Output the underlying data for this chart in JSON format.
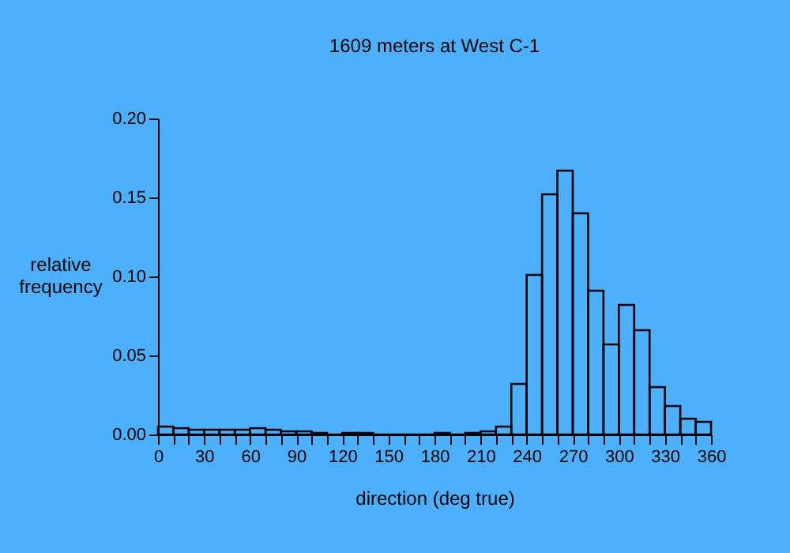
{
  "chart_data": {
    "type": "histogram",
    "title": "1609 meters at West C-1",
    "xlabel": "direction (deg true)",
    "ylabel": "relative frequency",
    "bins": [
      0,
      10,
      20,
      30,
      40,
      50,
      60,
      70,
      80,
      90,
      100,
      110,
      120,
      130,
      140,
      150,
      160,
      170,
      180,
      190,
      200,
      210,
      220,
      230,
      240,
      250,
      260,
      270,
      280,
      290,
      300,
      310,
      320,
      330,
      340,
      350,
      360
    ],
    "values": [
      0.005,
      0.004,
      0.003,
      0.003,
      0.003,
      0.003,
      0.004,
      0.003,
      0.002,
      0.002,
      0.001,
      0,
      0.001,
      0.001,
      0,
      0,
      0,
      0,
      0.001,
      0,
      0.001,
      0.002,
      0.005,
      0.032,
      0.101,
      0.152,
      0.167,
      0.14,
      0.091,
      0.057,
      0.082,
      0.066,
      0.03,
      0.018,
      0.01,
      0.008
    ],
    "color": "#000000",
    "xlim": [
      0,
      360
    ],
    "xticks": [
      0,
      {
        "value": 10,
        "label": null
      },
      {
        "value": 20,
        "label": null
      },
      30,
      {
        "value": 40,
        "label": null
      },
      {
        "value": 50,
        "label": null
      },
      60,
      {
        "value": 70,
        "label": null
      },
      {
        "value": 80,
        "label": null
      },
      90,
      {
        "value": 100,
        "label": null
      },
      {
        "value": 110,
        "label": null
      },
      120,
      {
        "value": 130,
        "label": null
      },
      {
        "value": 140,
        "label": null
      },
      150,
      {
        "value": 160,
        "label": null
      },
      {
        "value": 170,
        "label": null
      },
      180,
      {
        "value": 190,
        "label": null
      },
      {
        "value": 200,
        "label": null
      },
      210,
      {
        "value": 220,
        "label": null
      },
      {
        "value": 230,
        "label": null
      },
      240,
      {
        "value": 250,
        "label": null
      },
      {
        "value": 260,
        "label": null
      },
      270,
      {
        "value": 280,
        "label": null
      },
      {
        "value": 290,
        "label": null
      },
      300,
      {
        "value": 310,
        "label": null
      },
      {
        "value": 320,
        "label": null
      },
      330,
      {
        "value": 340,
        "label": null
      },
      {
        "value": 350,
        "label": null
      },
      360
    ],
    "ylim": [
      0,
      0.2
    ],
    "yticks": [
      {
        "value": 0,
        "label": "0.00"
      },
      {
        "value": 0.05,
        "label": "0.05"
      },
      {
        "value": 0.1,
        "label": "0.10"
      },
      {
        "value": 0.15,
        "label": "0.15"
      },
      {
        "value": 0.2,
        "label": "0.20"
      }
    ],
    "grid": false
  }
}
